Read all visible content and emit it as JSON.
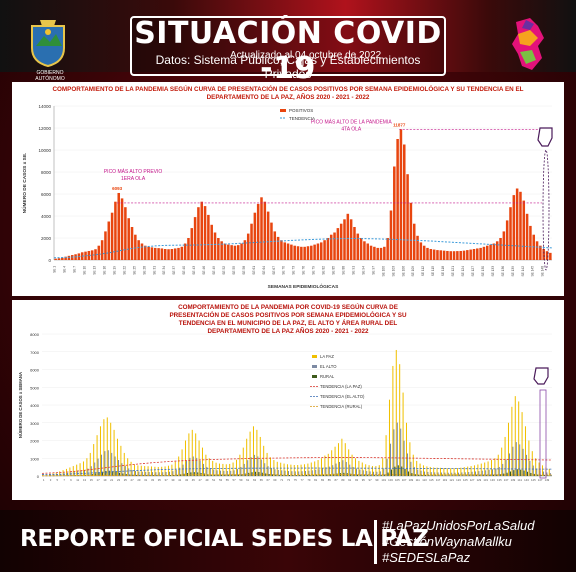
{
  "header": {
    "title": "SITUACIÓN COVID -19",
    "updated": "Actualizado al 04 octubre de 2022",
    "source": "Datos: Sistema Público, Cajas y Establecimientos Privados",
    "left_logo_label": "GOBIERNO AUTÓNOMO DEPARTAMENTAL DE LA PAZ"
  },
  "footer": {
    "report": "REPORTE OFICIAL SEDES LA PAZ",
    "hashtags": [
      "#LaPazUnidosPorLaSalud",
      "#GestiónWaynaMallku",
      "#SEDESLaPaz"
    ]
  },
  "colors": {
    "positive": "#e8450f",
    "trend": "#3a9ad9",
    "lapaz": "#f0c000",
    "elalto": "#7d8aa3",
    "rural": "#3d5a1c",
    "annot": "#c4148a"
  },
  "chart_data": [
    {
      "type": "bar",
      "title": "COMPORTAMIENTO DE LA PANDEMIA SEGÚN CURVA DE PRESENTACIÓN DE CASOS POSITIVOS POR SEMANA EPIDEMIOLÓGICA Y SU TENDENCIA EN EL DEPARTAMENTO DE LA PAZ, AÑOS 2020 - 2021 - 2022",
      "xlabel": "SEMANAS EPIDEMIOLÓGICAS",
      "ylabel": "NÚMERO DE CASOS x SE.",
      "ylim": [
        0,
        14000
      ],
      "yticks": [
        0,
        2000,
        4000,
        6000,
        8000,
        10000,
        12000,
        14000
      ],
      "legend": {
        "placement": "top-center",
        "items": [
          "POSITIVOS",
          "TENDENCIA"
        ]
      },
      "annotations": [
        "PICO MÁS ALTO PREVIO",
        "1ERA OLA",
        "PICO MÁS ALTO DE LA PANDEMIA",
        "4TA OLA"
      ],
      "peak_values": {
        "wave1": 6093,
        "wave4": 11877
      },
      "series": [
        {
          "name": "POSITIVOS",
          "values": [
            120,
            160,
            220,
            300,
            380,
            450,
            520,
            600,
            700,
            760,
            820,
            880,
            980,
            1300,
            1800,
            2600,
            3500,
            4300,
            5300,
            6093,
            5600,
            4800,
            3800,
            3000,
            2300,
            1800,
            1500,
            1300,
            1200,
            1150,
            1100,
            1080,
            1050,
            1000,
            980,
            1000,
            1050,
            1100,
            1200,
            1500,
            2000,
            2900,
            3900,
            4800,
            5300,
            4900,
            4100,
            3200,
            2500,
            2000,
            1700,
            1500,
            1400,
            1350,
            1300,
            1350,
            1500,
            1800,
            2400,
            3300,
            4300,
            5100,
            5700,
            5300,
            4400,
            3400,
            2600,
            2100,
            1800,
            1600,
            1500,
            1400,
            1300,
            1250,
            1200,
            1200,
            1250,
            1300,
            1400,
            1500,
            1600,
            1800,
            2000,
            2300,
            2500,
            2900,
            3300,
            3700,
            4200,
            3700,
            3000,
            2400,
            2000,
            1700,
            1500,
            1300,
            1200,
            1100,
            1100,
            1200,
            2000,
            4500,
            8500,
            11000,
            11877,
            10500,
            7800,
            5200,
            3300,
            2200,
            1600,
            1300,
            1100,
            1000,
            950,
            900,
            880,
            850,
            820,
            800,
            800,
            810,
            820,
            850,
            900,
            950,
            1000,
            1050,
            1100,
            1200,
            1300,
            1400,
            1500,
            1700,
            2000,
            2600,
            3600,
            4800,
            5900,
            6500,
            6200,
            5400,
            4200,
            3100,
            2300,
            1700,
            1300,
            1000,
            800,
            650
          ]
        },
        {
          "name": "TENDENCIA",
          "values": [
            200,
            220,
            250,
            300,
            380,
            450,
            540,
            650,
            780,
            920,
            1050,
            1150,
            1220,
            1280,
            1320,
            1340,
            1350,
            1350,
            1360,
            1380,
            1400,
            1420,
            1450,
            1480,
            1520,
            1560,
            1600,
            1640,
            1680,
            1720,
            1760,
            1800,
            1830,
            1860,
            1890,
            1910,
            1930,
            1940,
            1950,
            1950,
            1940,
            1930,
            1910,
            1890,
            1860,
            1830,
            1800,
            1770,
            1740,
            1700,
            1660,
            1620,
            1580,
            1540,
            1500,
            1460,
            1420,
            1380,
            1340,
            1300,
            1260,
            1220,
            1180,
            1140,
            1100
          ]
        }
      ]
    },
    {
      "type": "bar",
      "title": "COMPORTAMIENTO DE LA PANDEMIA POR COVID-19 SEGÚN CURVA DE PRESENTACIÓN DE CASOS POSITIVOS POR SEMANA EPIDEMIOLÓGICA Y SU TENDENCIA EN EL MUNICIPIO DE LA PAZ, EL ALTO Y ÁREA RURAL DEL DEPARTAMENTO DE LA PAZ AÑOS 2020 - 2021 - 2022",
      "ylabel": "NÚMERO DE CASOS x SEMANA",
      "ylim": [
        0,
        8000
      ],
      "yticks": [
        0,
        1000,
        2000,
        3000,
        4000,
        5000,
        6000,
        7000,
        8000
      ],
      "legend": {
        "placement": "center-right",
        "items": [
          "LA PAZ",
          "EL ALTO",
          "RURAL",
          "TENDENCIA (LA PAZ)",
          "TENDENCIA (EL ALTO)",
          "TENDENCIA (RURAL)"
        ]
      },
      "series": [
        {
          "name": "LA PAZ",
          "values": [
            60,
            80,
            110,
            150,
            200,
            260,
            330,
            400,
            480,
            560,
            640,
            720,
            820,
            1000,
            1300,
            1800,
            2300,
            2800,
            3200,
            3300,
            3000,
            2600,
            2100,
            1700,
            1300,
            1000,
            800,
            650,
            600,
            580,
            560,
            550,
            540,
            520,
            510,
            520,
            540,
            580,
            640,
            800,
            1100,
            1500,
            2000,
            2400,
            2600,
            2400,
            2000,
            1600,
            1200,
            1000,
            850,
            750,
            700,
            680,
            660,
            680,
            760,
            920,
            1200,
            1600,
            2100,
            2500,
            2800,
            2600,
            2200,
            1700,
            1300,
            1050,
            900,
            800,
            750,
            700,
            660,
            640,
            620,
            620,
            640,
            660,
            700,
            760,
            820,
            900,
            1000,
            1150,
            1250,
            1450,
            1650,
            1850,
            2100,
            1850,
            1500,
            1200,
            1000,
            850,
            760,
            660,
            610,
            560,
            560,
            610,
            1000,
            2300,
            4300,
            6200,
            7100,
            6300,
            4700,
            3000,
            1900,
            1200,
            850,
            700,
            600,
            540,
            510,
            480,
            470,
            460,
            450,
            440,
            440,
            440,
            450,
            470,
            500,
            530,
            560,
            600,
            650,
            700,
            760,
            820,
            900,
            1000,
            1200,
            1600,
            2200,
            3000,
            3900,
            4500,
            4200,
            3600,
            2800,
            2000,
            1400,
            1000,
            760,
            600,
            480,
            400
          ]
        },
        {
          "name": "EL ALTO",
          "values": [
            30,
            40,
            55,
            70,
            90,
            120,
            150,
            180,
            210,
            240,
            270,
            300,
            340,
            420,
            550,
            760,
            980,
            1200,
            1400,
            1450,
            1300,
            1100,
            900,
            720,
            560,
            430,
            340,
            280,
            250,
            240,
            230,
            225,
            220,
            215,
            210,
            215,
            225,
            240,
            270,
            340,
            470,
            640,
            850,
            1020,
            1100,
            1020,
            850,
            680,
            510,
            420,
            360,
            320,
            300,
            290,
            280,
            290,
            320,
            390,
            510,
            680,
            890,
            1060,
            1190,
            1100,
            930,
            720,
            550,
            450,
            380,
            340,
            320,
            300,
            280,
            270,
            260,
            260,
            270,
            280,
            300,
            320,
            350,
            380,
            420,
            490,
            530,
            610,
            700,
            790,
            890,
            790,
            640,
            510,
            420,
            360,
            320,
            280,
            260,
            240,
            240,
            260,
            420,
            970,
            1820,
            2630,
            3010,
            2670,
            1990,
            1270,
            800,
            510,
            360,
            300,
            250,
            230,
            215,
            205,
            200,
            195,
            190,
            185,
            185,
            185,
            190,
            200,
            210,
            225,
            240,
            255,
            275,
            300,
            320,
            350,
            380,
            420,
            510,
            680,
            930,
            1270,
            1650,
            1910,
            1780,
            1530,
            1190,
            850,
            590,
            420,
            320,
            250,
            200,
            170
          ]
        },
        {
          "name": "RURAL",
          "values": [
            5,
            7,
            10,
            14,
            18,
            24,
            30,
            36,
            42,
            48,
            54,
            60,
            68,
            84,
            110,
            150,
            200,
            240,
            280,
            300,
            270,
            230,
            180,
            140,
            110,
            85,
            68,
            56,
            50,
            48,
            46,
            45,
            44,
            43,
            42,
            43,
            45,
            48,
            54,
            68,
            94,
            128,
            170,
            204,
            220,
            204,
            170,
            136,
            102,
            84,
            72,
            64,
            60,
            58,
            56,
            58,
            64,
            78,
            102,
            136,
            178,
            212,
            238,
            220,
            186,
            144,
            110,
            90,
            76,
            68,
            64,
            60,
            56,
            54,
            52,
            52,
            54,
            56,
            60,
            64,
            70,
            76,
            84,
            98,
            106,
            122,
            140,
            158,
            178,
            158,
            128,
            102,
            84,
            72,
            64,
            56,
            52,
            48,
            48,
            52,
            84,
            194,
            364,
            526,
            602,
            534,
            398,
            254,
            160,
            102,
            72,
            60,
            50,
            46,
            43,
            41,
            40,
            39,
            38,
            37,
            37,
            37,
            38,
            40,
            42,
            45,
            48,
            51,
            55,
            60,
            64,
            70,
            76,
            84,
            102,
            136,
            186,
            254,
            330,
            382,
            356,
            306,
            238,
            170,
            118,
            84,
            64,
            50,
            40,
            34
          ]
        },
        {
          "name": "TENDENCIA (LA PAZ)",
          "values": [
            150,
            180,
            230,
            300,
            390,
            480,
            570,
            650,
            720,
            780,
            830,
            870,
            900,
            930,
            950,
            970,
            985,
            1000,
            1010,
            1020,
            1030,
            1035,
            1040,
            1040,
            1040,
            1035,
            1030,
            1020,
            1010,
            1000,
            990,
            980,
            970,
            960,
            950,
            940,
            930,
            920,
            910,
            900
          ]
        },
        {
          "name": "TENDENCIA (EL ALTO)",
          "values": [
            80,
            90,
            110,
            140,
            180,
            220,
            260,
            300,
            330,
            360,
            380,
            400,
            410,
            420,
            430,
            435,
            440,
            442,
            444,
            445,
            446,
            446,
            445,
            444,
            442,
            440,
            437,
            434,
            430,
            426,
            422,
            418,
            414,
            410,
            406,
            402,
            398,
            394,
            390,
            386
          ]
        },
        {
          "name": "TENDENCIA (RURAL)",
          "values": [
            10,
            12,
            15,
            20,
            26,
            32,
            38,
            44,
            50,
            55,
            60,
            64,
            67,
            70,
            72,
            74,
            75,
            76,
            77,
            78,
            78,
            78,
            78,
            77,
            77,
            76,
            75,
            74,
            73,
            72,
            71,
            70,
            69,
            68,
            67,
            66,
            65,
            64,
            63,
            62
          ]
        }
      ]
    }
  ]
}
